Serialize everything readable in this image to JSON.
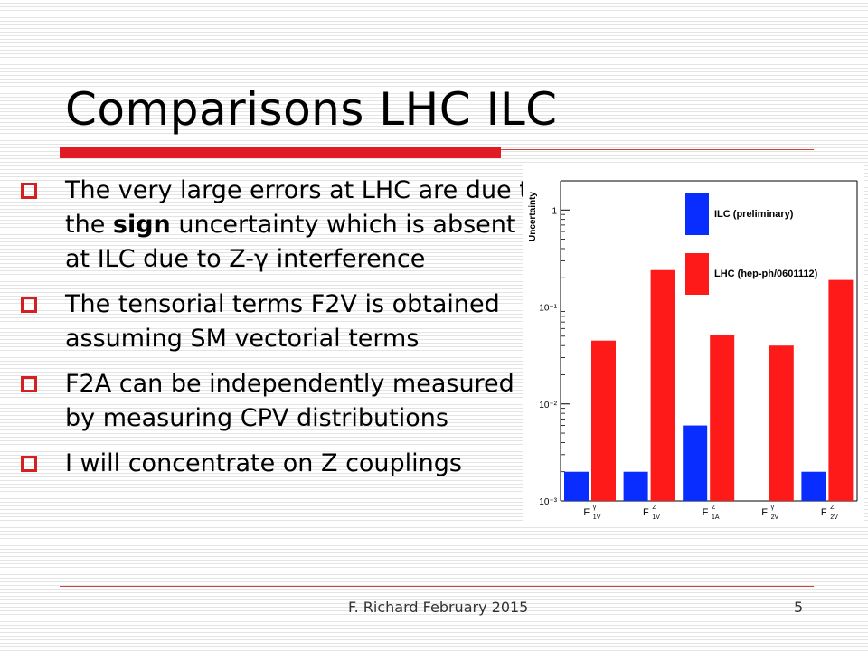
{
  "slide": {
    "title": "Comparisons LHC ILC",
    "bullets": [
      {
        "parts": [
          {
            "text": "The very large errors at LHC are due to the "
          },
          {
            "text": "sign",
            "bold": true
          },
          {
            "text": " uncertainty which is absent at ILC due to Z-γ interference"
          }
        ]
      },
      {
        "parts": [
          {
            "text": "The tensorial terms F2V is obtained assuming SM vectorial terms"
          }
        ]
      },
      {
        "parts": [
          {
            "text": " F2A can be independently measured by measuring CPV distributions"
          }
        ]
      },
      {
        "parts": [
          {
            "text": "I will concentrate on Z couplings"
          }
        ]
      }
    ],
    "footer": "F. Richard February 2015",
    "page_number": "5"
  },
  "colors": {
    "accent": "#e01b24",
    "ilc": "#0a2dff",
    "lhc": "#ff1a1a"
  },
  "chart_data": {
    "type": "bar",
    "scale": "log",
    "ylabel": "Uncertainty",
    "ylim": [
      0.001,
      2
    ],
    "y_ticks": [
      {
        "value": 1,
        "label": "1"
      },
      {
        "value": 0.1,
        "label": "10⁻¹"
      },
      {
        "value": 0.01,
        "label": "10⁻²"
      },
      {
        "value": 0.001,
        "label": "10⁻³"
      }
    ],
    "categories": [
      {
        "base": "F",
        "sup": "γ",
        "sub": "1V"
      },
      {
        "base": "F",
        "sup": "Z",
        "sub": "1V"
      },
      {
        "base": "F",
        "sup": "Z",
        "sub": "1A"
      },
      {
        "base": "F",
        "sup": "γ",
        "sub": "2V"
      },
      {
        "base": "F",
        "sup": "Z",
        "sub": "2V"
      }
    ],
    "series": [
      {
        "name": "ILC (preliminary)",
        "color": "#0a2dff",
        "values": [
          0.002,
          0.002,
          0.006,
          0.001,
          0.002
        ]
      },
      {
        "name": "LHC (hep-ph/0601112)",
        "color": "#ff1a1a",
        "values": [
          0.045,
          0.24,
          0.052,
          0.04,
          0.19
        ]
      }
    ],
    "legend_position": "top-right"
  }
}
